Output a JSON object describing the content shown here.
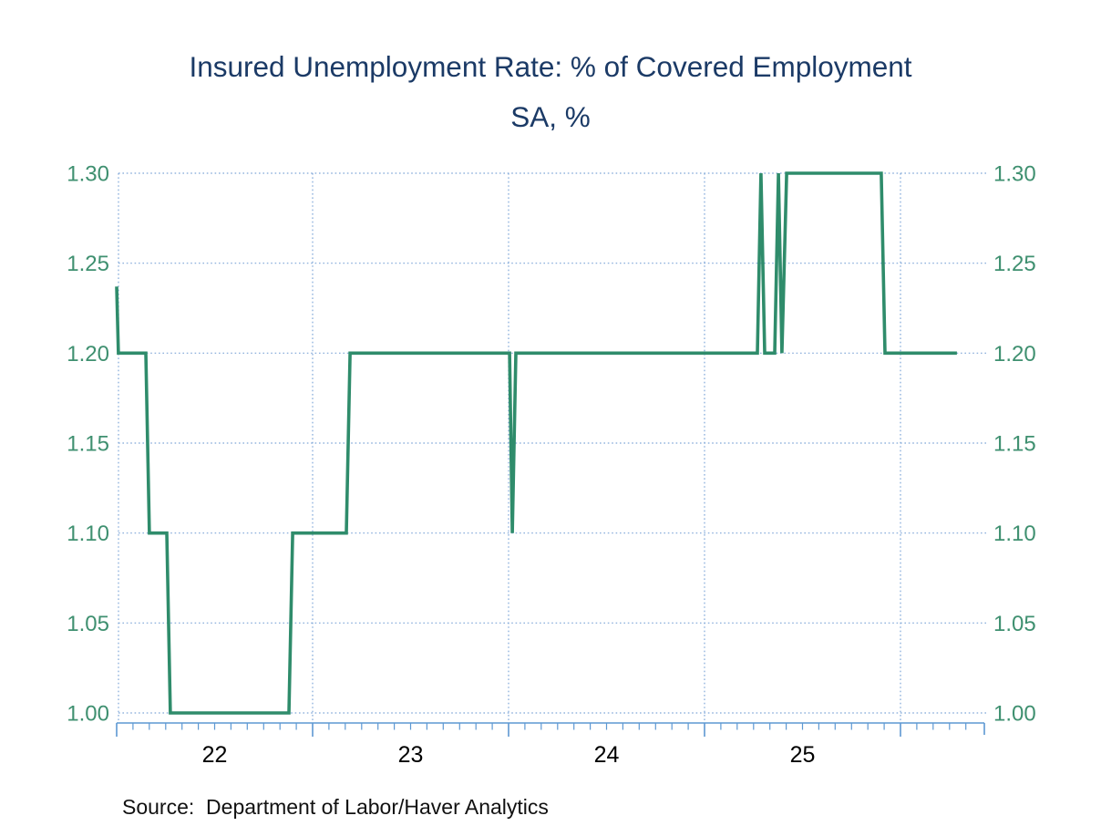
{
  "title": {
    "line1": "Insured Unemployment Rate: % of Covered Employment",
    "line2": "SA, %"
  },
  "source": "Source:  Department of Labor/Haver Analytics",
  "colors": {
    "title": "#1B3A66",
    "line": "#2F8C6B",
    "axis_labels": "#3F9070",
    "grid": "#7FA6D8",
    "axis": "#5D98D2",
    "x_labels": "#000000",
    "source_text": "#111111"
  },
  "chart_data": {
    "type": "line",
    "title": "Insured Unemployment Rate: % of Covered Employment",
    "subtitle": "SA, %",
    "ylabel": "",
    "xlabel": "",
    "unit": "%",
    "frequency": "weekly",
    "grid": "dotted",
    "legend": "none",
    "x_axis": {
      "year_boundaries": [
        2022,
        2023,
        2024,
        2025,
        2026
      ],
      "year_labels": [
        "22",
        "23",
        "24",
        "25"
      ],
      "xlim": [
        2022.0,
        2026.43
      ],
      "minor_tick": "monthly"
    },
    "y_axis": {
      "ticks": [
        1.3,
        1.25,
        1.2,
        1.15,
        1.1,
        1.05,
        1.0
      ],
      "ylim": [
        1.0,
        1.3
      ],
      "sides": "both",
      "tick_format": "0.00"
    },
    "series": [
      {
        "name": "Insured Unemployment Rate (% of Covered Employment, SA)",
        "points": [
          [
            2022.0,
            1.237
          ],
          [
            2022.009,
            1.2
          ],
          [
            2022.149,
            1.2
          ],
          [
            2022.167,
            1.1
          ],
          [
            2022.256,
            1.1
          ],
          [
            2022.274,
            1.0
          ],
          [
            2022.879,
            1.0
          ],
          [
            2022.898,
            1.1
          ],
          [
            2023.172,
            1.1
          ],
          [
            2023.191,
            1.2
          ],
          [
            2024.005,
            1.2
          ],
          [
            2024.019,
            1.1
          ],
          [
            2024.037,
            1.2
          ],
          [
            2025.27,
            1.2
          ],
          [
            2025.288,
            1.3
          ],
          [
            2025.307,
            1.2
          ],
          [
            2025.358,
            1.2
          ],
          [
            2025.377,
            1.3
          ],
          [
            2025.395,
            1.2
          ],
          [
            2025.419,
            1.3
          ],
          [
            2025.902,
            1.3
          ],
          [
            2025.921,
            1.2
          ],
          [
            2026.288,
            1.2
          ]
        ]
      }
    ]
  }
}
